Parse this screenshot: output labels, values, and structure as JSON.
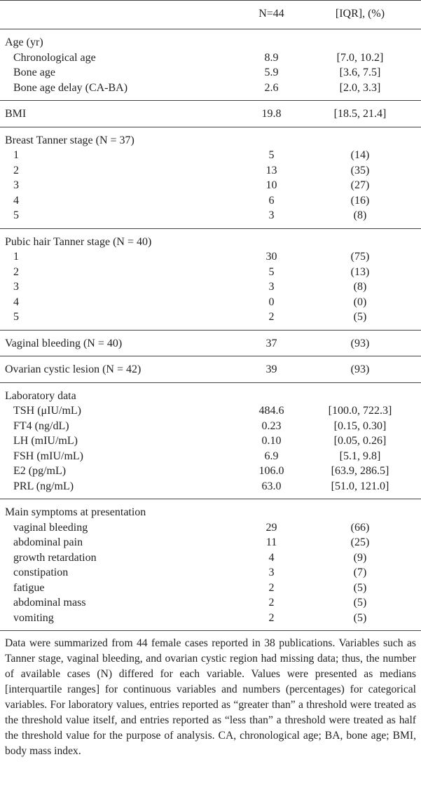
{
  "header": {
    "columns": [
      "N=44",
      "[IQR], (%)"
    ]
  },
  "sections": [
    {
      "title": "Age (yr)",
      "rows": [
        {
          "label": "Chronological age",
          "n": "8.9",
          "iqr": "[7.0, 10.2]"
        },
        {
          "label": "Bone age",
          "n": "5.9",
          "iqr": "[3.6, 7.5]"
        },
        {
          "label": "Bone age delay (CA-BA)",
          "n": "2.6",
          "iqr": "[2.0, 3.3]"
        }
      ]
    },
    {
      "title": "BMI",
      "n": "19.8",
      "iqr": "[18.5, 21.4]",
      "rows": []
    },
    {
      "title": "Breast Tanner stage (N = 37)",
      "rows": [
        {
          "label": "1",
          "n": "5",
          "iqr": "(14)"
        },
        {
          "label": "2",
          "n": "13",
          "iqr": "(35)"
        },
        {
          "label": "3",
          "n": "10",
          "iqr": "(27)"
        },
        {
          "label": "4",
          "n": "6",
          "iqr": "(16)"
        },
        {
          "label": "5",
          "n": "3",
          "iqr": "(8)"
        }
      ]
    },
    {
      "title": "Pubic hair Tanner stage (N = 40)",
      "rows": [
        {
          "label": "1",
          "n": "30",
          "iqr": "(75)"
        },
        {
          "label": "2",
          "n": "5",
          "iqr": "(13)"
        },
        {
          "label": "3",
          "n": "3",
          "iqr": "(8)"
        },
        {
          "label": "4",
          "n": "0",
          "iqr": "(0)"
        },
        {
          "label": "5",
          "n": "2",
          "iqr": "(5)"
        }
      ]
    },
    {
      "title": "Vaginal bleeding (N = 40)",
      "n": "37",
      "iqr": "(93)",
      "rows": []
    },
    {
      "title": "Ovarian cystic lesion (N = 42)",
      "n": "39",
      "iqr": "(93)",
      "rows": []
    },
    {
      "title": "Laboratory data",
      "rows": [
        {
          "label": "TSH (μIU/mL)",
          "n": "484.6",
          "iqr": "[100.0, 722.3]"
        },
        {
          "label": "FT4 (ng/dL)",
          "n": "0.23",
          "iqr": "[0.15, 0.30]"
        },
        {
          "label": "LH (mIU/mL)",
          "n": "0.10",
          "iqr": "[0.05, 0.26]"
        },
        {
          "label": "FSH (mIU/mL)",
          "n": "6.9",
          "iqr": "[5.1, 9.8]"
        },
        {
          "label": "E2 (pg/mL)",
          "n": "106.0",
          "iqr": "[63.9, 286.5]"
        },
        {
          "label": "PRL (ng/mL)",
          "n": "63.0",
          "iqr": "[51.0, 121.0]"
        }
      ]
    },
    {
      "title": "Main symptoms at presentation",
      "rows": [
        {
          "label": "vaginal bleeding",
          "n": "29",
          "iqr": "(66)"
        },
        {
          "label": "abdominal pain",
          "n": "11",
          "iqr": "(25)"
        },
        {
          "label": "growth retardation",
          "n": "4",
          "iqr": "(9)"
        },
        {
          "label": "constipation",
          "n": "3",
          "iqr": "(7)"
        },
        {
          "label": "fatigue",
          "n": "2",
          "iqr": "(5)"
        },
        {
          "label": "abdominal mass",
          "n": "2",
          "iqr": "(5)"
        },
        {
          "label": "vomiting",
          "n": "2",
          "iqr": "(5)"
        }
      ]
    }
  ],
  "footnote": "Data were summarized from 44 female cases reported in 38 publications. Variables such as Tanner stage, vaginal bleeding, and ovarian cystic region had missing data; thus, the number of available cases (N) differed for each variable. Values were presented as medians [interquartile ranges] for continuous variables and numbers (percentages) for categorical variables. For laboratory values, entries reported as “greater than” a threshold were treated as the threshold value itself, and entries reported as “less than” a threshold were treated as half the threshold value for the purpose of analysis. CA, chronological age; BA, bone age; BMI, body mass index."
}
